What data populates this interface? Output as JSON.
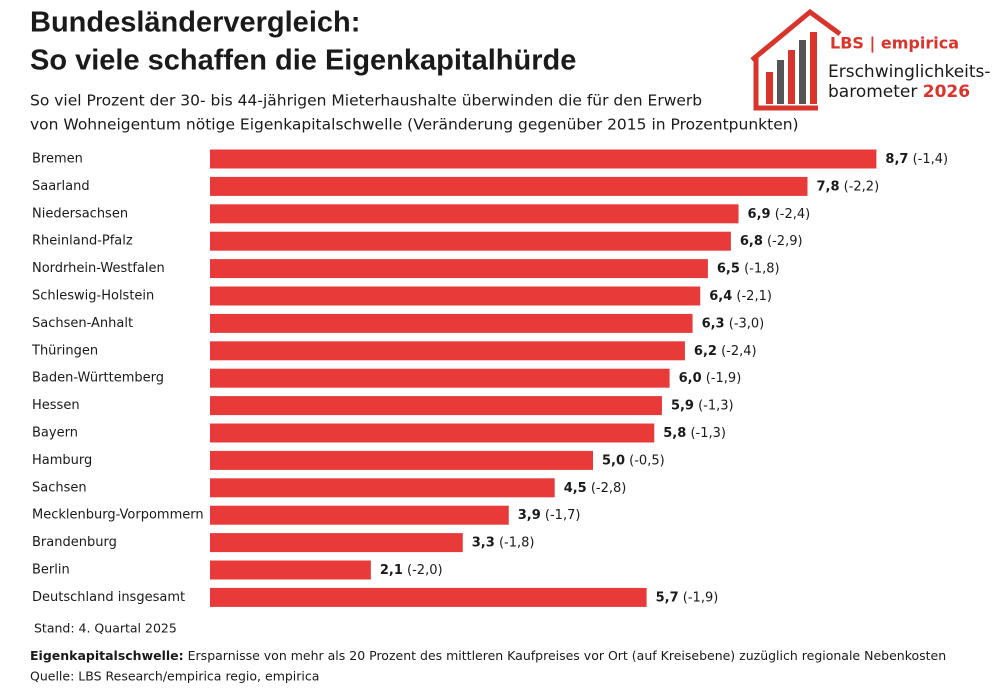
{
  "chart_data": {
    "type": "bar",
    "orientation": "horizontal",
    "title": [
      "Bundesländervergleich:",
      "So viele schaffen die Eigenkapitalhürde"
    ],
    "subtitle": [
      "So viel Prozent der 30- bis 44-jährigen Mieterhaushalte überwinden die für den Erwerb",
      "von Wohneigentum nötige Eigenkapitalschwelle (Veränderung gegenüber 2015 in Prozentpunkten)"
    ],
    "logo": {
      "brand": "LBS | empirica",
      "line1": "Erschwinglichkeits-",
      "line2": "barometer",
      "year": "2026"
    },
    "categories": [
      "Bremen",
      "Saarland",
      "Niedersachsen",
      "Rheinland-Pfalz",
      "Nordrhein-Westfalen",
      "Schleswig-Holstein",
      "Sachsen-Anhalt",
      "Thüringen",
      "Baden-Württemberg",
      "Hessen",
      "Bayern",
      "Hamburg",
      "Sachsen",
      "Mecklenburg-Vorpommern",
      "Brandenburg",
      "Berlin",
      "Deutschland insgesamt"
    ],
    "values": [
      8.7,
      7.8,
      6.9,
      6.8,
      6.5,
      6.4,
      6.3,
      6.2,
      6.0,
      5.9,
      5.8,
      5.0,
      4.5,
      3.9,
      3.3,
      2.1,
      5.7
    ],
    "value_labels": [
      "8,7",
      "7,8",
      "6,9",
      "6,8",
      "6,5",
      "6,4",
      "6,3",
      "6,2",
      "6,0",
      "5,9",
      "5,8",
      "5,0",
      "4,5",
      "3,9",
      "3,3",
      "2,1",
      "5,7"
    ],
    "changes": [
      -1.4,
      -2.2,
      -2.4,
      -2.9,
      -1.8,
      -2.1,
      -3.0,
      -2.4,
      -1.9,
      -1.3,
      -1.3,
      -0.5,
      -2.8,
      -1.7,
      -1.8,
      -2.0,
      -1.9
    ],
    "change_labels": [
      "(-1,4)",
      "(-2,2)",
      "(-2,4)",
      "(-2,9)",
      "(-1,8)",
      "(-2,1)",
      "(-3,0)",
      "(-2,4)",
      "(-1,9)",
      "(-1,3)",
      "(-1,3)",
      "(-0,5)",
      "(-2,8)",
      "(-1,7)",
      "(-1,8)",
      "(-2,0)",
      "(-1,9)"
    ],
    "color": "#e83b39",
    "note": "Stand: 4. Quartal 2025",
    "definition_term": "Eigenkapitalschwelle:",
    "definition_text": "Ersparnisse von mehr als 20 Prozent des mittleren Kaufpreises vor Ort (auf Kreisebene) zuzüglich regionale Nebenkosten",
    "source": "Quelle: LBS Research/empirica regio, empirica"
  }
}
